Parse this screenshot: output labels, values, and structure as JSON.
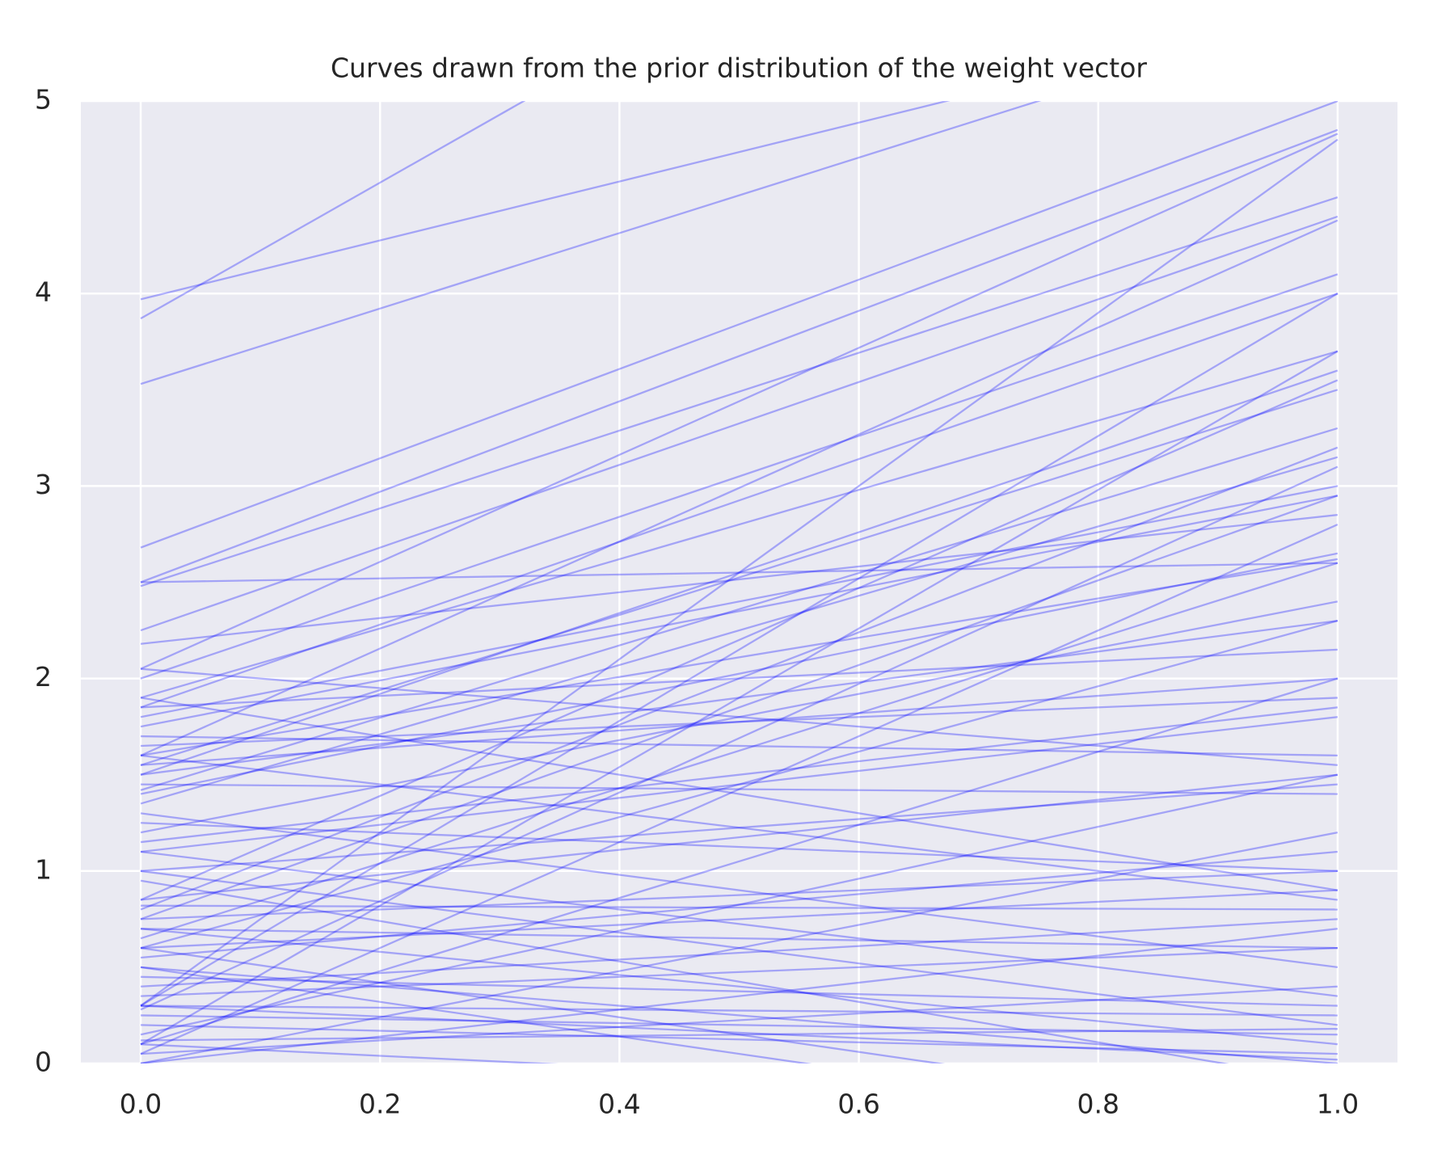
{
  "chart_data": {
    "type": "line",
    "title": "Curves drawn from the prior distribution of the weight vector",
    "x": [
      0,
      1
    ],
    "xlim": [
      -0.05,
      1.05
    ],
    "xticks": [
      {
        "value": 0,
        "label": "0.0"
      },
      {
        "value": 0.2,
        "label": "0.2"
      },
      {
        "value": 0.4,
        "label": "0.4"
      },
      {
        "value": 0.6,
        "label": "0.6"
      },
      {
        "value": 0.8,
        "label": "0.8"
      },
      {
        "value": 1,
        "label": "1.0"
      }
    ],
    "ylim": [
      0,
      5
    ],
    "yticks": [
      0,
      1,
      2,
      3,
      4,
      5
    ],
    "grid": true,
    "color": "#0000ff",
    "alpha": 0.3,
    "series": [
      {
        "values": [
          3.87,
          7.4
        ]
      },
      {
        "values": [
          3.97,
          5.5
        ]
      },
      {
        "values": [
          3.53,
          5.49
        ]
      },
      {
        "values": [
          2.68,
          5.0
        ]
      },
      {
        "values": [
          2.5,
          4.85
        ]
      },
      {
        "values": [
          2.48,
          4.5
        ]
      },
      {
        "values": [
          2.25,
          4.4
        ]
      },
      {
        "values": [
          2.05,
          4.83
        ]
      },
      {
        "values": [
          2.0,
          4.1
        ]
      },
      {
        "values": [
          1.9,
          3.7
        ]
      },
      {
        "values": [
          1.85,
          4.0
        ]
      },
      {
        "values": [
          1.6,
          4.38
        ]
      },
      {
        "values": [
          1.55,
          3.5
        ]
      },
      {
        "values": [
          1.5,
          3.6
        ]
      },
      {
        "values": [
          1.42,
          3.3
        ]
      },
      {
        "values": [
          1.35,
          3.15
        ]
      },
      {
        "values": [
          1.8,
          3.0
        ]
      },
      {
        "values": [
          1.75,
          2.95
        ]
      },
      {
        "values": [
          2.5,
          2.6
        ]
      },
      {
        "values": [
          2.18,
          2.85
        ]
      },
      {
        "values": [
          1.6,
          2.62
        ]
      },
      {
        "values": [
          1.4,
          2.65
        ]
      },
      {
        "values": [
          1.2,
          2.4
        ]
      },
      {
        "values": [
          1.5,
          2.3
        ]
      },
      {
        "values": [
          1.85,
          2.15
        ]
      },
      {
        "values": [
          1.7,
          1.6
        ]
      },
      {
        "values": [
          1.65,
          1.9
        ]
      },
      {
        "values": [
          1.55,
          2.0
        ]
      },
      {
        "values": [
          1.15,
          1.85
        ]
      },
      {
        "values": [
          1.1,
          1.8
        ]
      },
      {
        "values": [
          0.85,
          3.55
        ]
      },
      {
        "values": [
          0.8,
          3.2
        ]
      },
      {
        "values": [
          0.75,
          2.95
        ]
      },
      {
        "values": [
          0.65,
          2.6
        ]
      },
      {
        "values": [
          0.6,
          2.3
        ]
      },
      {
        "values": [
          0.3,
          4.8
        ]
      },
      {
        "values": [
          0.3,
          4.0
        ]
      },
      {
        "values": [
          0.28,
          3.1
        ]
      },
      {
        "values": [
          0.1,
          3.7
        ]
      },
      {
        "values": [
          0.05,
          2.8
        ]
      },
      {
        "values": [
          0.85,
          1.5
        ]
      },
      {
        "values": [
          1.0,
          1.45
        ]
      },
      {
        "values": [
          0.75,
          1.0
        ]
      },
      {
        "values": [
          0.82,
          0.8
        ]
      },
      {
        "values": [
          0.6,
          0.9
        ]
      },
      {
        "values": [
          0.55,
          1.1
        ]
      },
      {
        "values": [
          0.5,
          0.0
        ]
      },
      {
        "values": [
          0.45,
          0.3
        ]
      },
      {
        "values": [
          0.4,
          0.75
        ]
      },
      {
        "values": [
          0.35,
          0.6
        ]
      },
      {
        "values": [
          0.3,
          0.25
        ]
      },
      {
        "values": [
          0.25,
          0.15
        ]
      },
      {
        "values": [
          0.2,
          0.05
        ]
      },
      {
        "values": [
          0.1,
          -0.2
        ]
      },
      {
        "values": [
          0.0,
          0.7
        ]
      },
      {
        "values": [
          0.05,
          0.4
        ]
      },
      {
        "values": [
          1.3,
          0.5
        ]
      },
      {
        "values": [
          1.1,
          0.35
        ]
      },
      {
        "values": [
          1.0,
          0.2
        ]
      },
      {
        "values": [
          0.95,
          -0.1
        ]
      },
      {
        "values": [
          0.7,
          0.1
        ]
      },
      {
        "values": [
          0.6,
          -0.3
        ]
      },
      {
        "values": [
          1.45,
          1.4
        ]
      },
      {
        "values": [
          1.25,
          1.0
        ]
      },
      {
        "values": [
          0.15,
          1.5
        ]
      },
      {
        "values": [
          0.1,
          2.0
        ]
      },
      {
        "values": [
          0.0,
          1.2
        ]
      },
      {
        "values": [
          1.9,
          0.9
        ]
      },
      {
        "values": [
          1.6,
          0.85
        ]
      },
      {
        "values": [
          2.05,
          1.55
        ]
      },
      {
        "values": [
          0.3,
          0.02
        ]
      },
      {
        "values": [
          0.12,
          0.18
        ]
      },
      {
        "values": [
          0.5,
          -0.4
        ]
      },
      {
        "values": [
          0.7,
          0.6
        ]
      }
    ]
  }
}
